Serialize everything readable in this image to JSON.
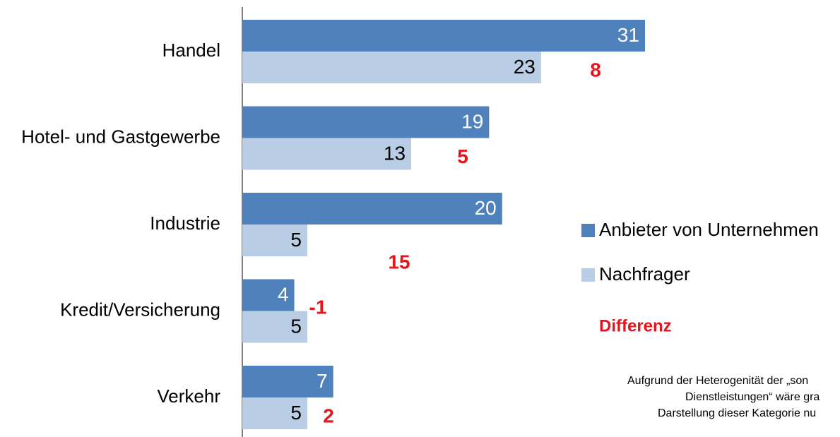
{
  "chart_data": {
    "type": "bar",
    "orientation": "horizontal",
    "categories": [
      "Handel",
      "Hotel- und Gastgewerbe",
      "Industrie",
      "Kredit/Versicherung",
      "Verkehr"
    ],
    "series": [
      {
        "name": "Anbieter von Unternehmen",
        "color": "#4f81bd",
        "values": [
          31,
          19,
          20,
          4,
          7
        ]
      },
      {
        "name": "Nachfrager",
        "color": "#b9cde5",
        "values": [
          23,
          13,
          5,
          5,
          5
        ]
      }
    ],
    "differences": {
      "name": "Differenz",
      "color": "#e8141b",
      "values": [
        8,
        5,
        15,
        -1,
        2
      ]
    },
    "note": [
      "Aufgrund der Heterogenität der „son",
      "Dienstleistungen“ wäre gra",
      "Darstellung dieser Kategorie nu"
    ]
  }
}
